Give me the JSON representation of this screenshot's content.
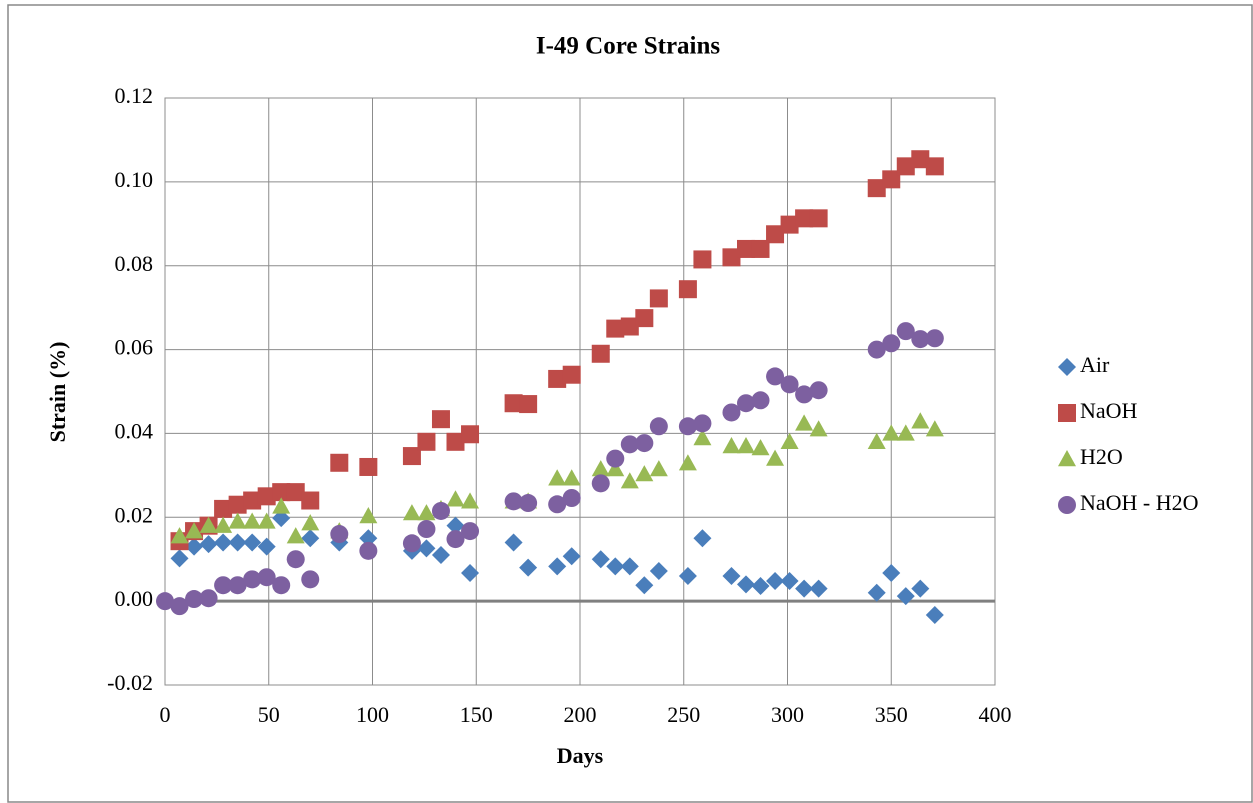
{
  "chart_data": {
    "type": "scatter",
    "title": "I-49 Core Strains",
    "x_label": "Days",
    "y_label": "Strain (%)",
    "x": [
      0,
      7,
      14,
      21,
      28,
      35,
      42,
      49,
      56,
      63,
      70,
      84,
      98,
      119,
      126,
      133,
      140,
      147,
      168,
      175,
      189,
      196,
      210,
      217,
      224,
      231,
      238,
      252,
      259,
      273,
      280,
      287,
      294,
      301,
      308,
      315,
      343,
      350,
      357,
      364,
      371
    ],
    "series": [
      {
        "name": "Air",
        "color": "#4a7ebb",
        "marker": "diamond",
        "values": [
          null,
          0.0102,
          0.013,
          0.0136,
          0.014,
          0.014,
          0.014,
          0.013,
          0.0198,
          0.01,
          0.015,
          0.014,
          0.015,
          0.012,
          0.0126,
          0.011,
          0.018,
          0.0067,
          0.014,
          0.008,
          0.0083,
          0.0107,
          0.01,
          0.0083,
          0.0083,
          0.0038,
          0.0072,
          0.006,
          0.015,
          0.006,
          0.004,
          0.0036,
          0.0048,
          0.0048,
          0.003,
          0.003,
          0.002,
          0.0067,
          0.0012,
          0.003,
          -0.0033
        ]
      },
      {
        "name": "NaOH",
        "color": "#be4b48",
        "marker": "square",
        "values": [
          null,
          0.0143,
          0.0167,
          0.018,
          0.022,
          0.023,
          0.024,
          0.025,
          0.026,
          0.026,
          0.024,
          0.033,
          0.032,
          0.0346,
          0.038,
          0.0434,
          0.038,
          0.0398,
          0.0472,
          0.047,
          0.053,
          0.054,
          0.059,
          0.065,
          0.0655,
          0.0675,
          0.0722,
          0.0744,
          0.0815,
          0.082,
          0.084,
          0.084,
          0.0875,
          0.0898,
          0.0913,
          0.0913,
          0.0985,
          0.1006,
          0.1037,
          0.1054,
          0.1037
        ]
      },
      {
        "name": "H2O",
        "color": "#98b954",
        "marker": "triangle",
        "values": [
          null,
          0.0155,
          0.0167,
          0.018,
          0.018,
          0.019,
          0.019,
          0.019,
          0.0226,
          0.0155,
          0.0186,
          0.0167,
          0.0203,
          0.021,
          0.021,
          0.022,
          0.0243,
          0.0238,
          0.0238,
          0.0238,
          0.0293,
          0.0293,
          0.0315,
          0.0315,
          0.0286,
          0.0303,
          0.0315,
          0.0329,
          0.0389,
          0.037,
          0.037,
          0.0365,
          0.034,
          0.038,
          0.0424,
          0.041,
          0.038,
          0.04,
          0.04,
          0.0429,
          0.041
        ]
      },
      {
        "name": "NaOH - H2O",
        "color": "#7d60a0",
        "marker": "circle",
        "values": [
          0,
          -0.0012,
          0.0005,
          0.0007,
          0.0038,
          0.0038,
          0.0052,
          0.0057,
          0.0038,
          0.01,
          0.0052,
          0.016,
          0.012,
          0.0138,
          0.0172,
          0.0215,
          0.0148,
          0.0167,
          0.0238,
          0.0234,
          0.0231,
          0.0246,
          0.0281,
          0.034,
          0.0374,
          0.0377,
          0.0417,
          0.0417,
          0.0424,
          0.045,
          0.0472,
          0.0479,
          0.0536,
          0.0517,
          0.0493,
          0.0503,
          0.06,
          0.0615,
          0.0644,
          0.0625,
          0.0627
        ]
      }
    ],
    "xlim": [
      0,
      400
    ],
    "xticks": [
      0,
      50,
      100,
      150,
      200,
      250,
      300,
      350,
      400
    ],
    "ylim": [
      -0.02,
      0.12
    ],
    "yticks": [
      -0.02,
      {
        "value": 0,
        "label": "0.00"
      },
      0.02,
      0.04,
      0.06,
      0.08,
      {
        "value": 0.1,
        "label": "0.10"
      },
      0.12
    ],
    "grid": true,
    "legend": "right"
  }
}
